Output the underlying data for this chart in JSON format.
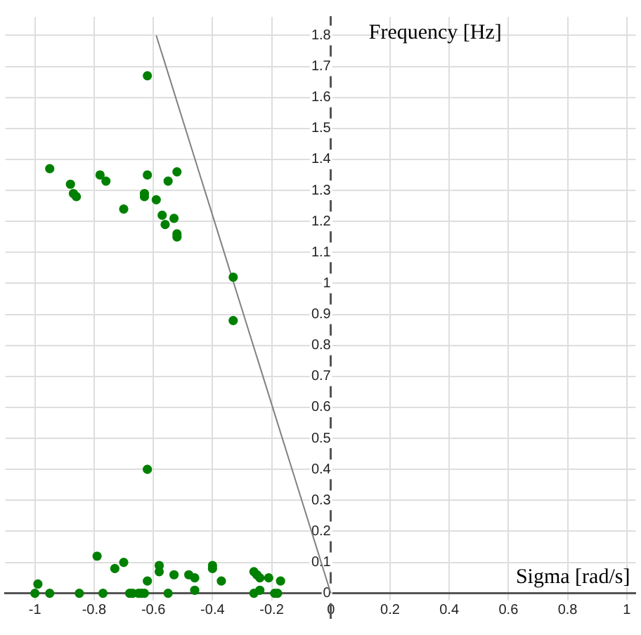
{
  "chart_data": {
    "type": "scatter",
    "xlabel": "Sigma [rad/s]",
    "ylabel": "Frequency [Hz]",
    "xlim": [
      -1.1,
      1.03
    ],
    "ylim": [
      -0.08,
      1.86
    ],
    "xticks": [
      -1,
      -0.8,
      -0.6,
      -0.4,
      -0.2,
      0,
      0.2,
      0.4,
      0.6,
      0.8,
      1
    ],
    "yticks": [
      0,
      0.1,
      0.2,
      0.3,
      0.4,
      0.5,
      0.6,
      0.7,
      0.8,
      0.9,
      1,
      1.1,
      1.2,
      1.3,
      1.4,
      1.5,
      1.6,
      1.7,
      1.8
    ],
    "grid": true,
    "legend": false,
    "marker": "circle",
    "series": [
      {
        "color": "#008000",
        "x": [
          -0.95,
          -0.88,
          -0.87,
          -0.86,
          -0.78,
          -0.76,
          -0.7,
          -0.62,
          -0.62,
          -0.63,
          -0.63,
          -0.59,
          -0.55,
          -0.52,
          -0.57,
          -0.53,
          -0.56,
          -0.52,
          -0.52,
          -0.33,
          -0.33,
          -0.62,
          -0.79,
          -0.73,
          -0.7,
          -0.99,
          -1.0,
          -0.95,
          -0.85,
          -0.77,
          -0.68,
          -0.67,
          -0.65,
          -0.64,
          -0.63,
          -0.62,
          -0.58,
          -0.58,
          -0.55,
          -0.53,
          -0.48,
          -0.46,
          -0.46,
          -0.4,
          -0.4,
          -0.37,
          -0.26,
          -0.25,
          -0.24,
          -0.26,
          -0.24,
          -0.21,
          -0.19,
          -0.18,
          -0.17
        ],
        "values": [
          1.37,
          1.32,
          1.29,
          1.28,
          1.35,
          1.33,
          1.24,
          1.67,
          1.35,
          1.29,
          1.28,
          1.27,
          1.33,
          1.36,
          1.22,
          1.21,
          1.19,
          1.16,
          1.15,
          1.02,
          0.88,
          0.4,
          0.12,
          0.08,
          0.1,
          0.03,
          0,
          0,
          0,
          0,
          0,
          0,
          0,
          0,
          0,
          0.04,
          0.09,
          0.07,
          0,
          0.06,
          0.06,
          0.05,
          0.01,
          0.09,
          0.08,
          0.04,
          0.07,
          0.06,
          0.05,
          0,
          0.01,
          0.05,
          0,
          0,
          0.04
        ]
      },
      {
        "type": "line",
        "color": "#808080",
        "marker": "none",
        "line_style": "solid",
        "x": [
          0,
          -0.59
        ],
        "values": [
          0,
          1.8
        ]
      }
    ]
  }
}
